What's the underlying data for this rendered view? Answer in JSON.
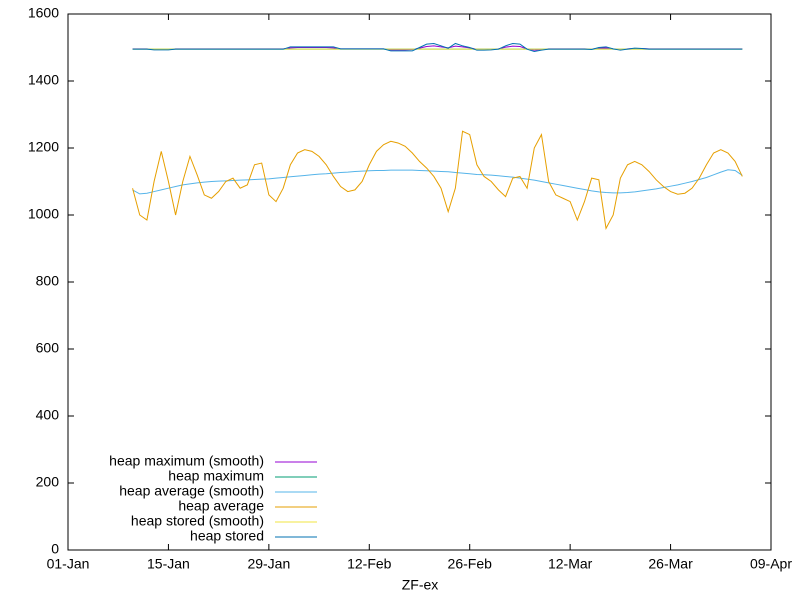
{
  "chart_data": {
    "type": "line",
    "xlabel": "ZF-ex",
    "x": [
      9,
      10,
      11,
      12,
      13,
      14,
      15,
      16,
      17,
      18,
      19,
      20,
      21,
      22,
      23,
      24,
      25,
      26,
      27,
      28,
      29,
      30,
      31,
      32,
      33,
      34,
      35,
      36,
      37,
      38,
      39,
      40,
      41,
      42,
      43,
      44,
      45,
      46,
      47,
      48,
      49,
      50,
      51,
      52,
      53,
      54,
      55,
      56,
      57,
      58,
      59,
      60,
      61,
      62,
      63,
      64,
      65,
      66,
      67,
      68,
      69,
      70,
      71,
      72,
      73,
      74,
      75,
      76,
      77,
      78,
      79,
      80,
      81,
      82,
      83,
      84,
      85,
      86,
      87,
      88,
      89,
      90,
      91,
      92,
      93,
      94
    ],
    "xlim": [
      0,
      98
    ],
    "xticks": [
      {
        "value": 0,
        "label": "01-Jan"
      },
      {
        "value": 14,
        "label": "15-Jan"
      },
      {
        "value": 28,
        "label": "29-Jan"
      },
      {
        "value": 42,
        "label": "12-Feb"
      },
      {
        "value": 56,
        "label": "26-Feb"
      },
      {
        "value": 70,
        "label": "12-Mar"
      },
      {
        "value": 84,
        "label": "26-Mar"
      },
      {
        "value": 98,
        "label": "09-Apr"
      }
    ],
    "ylim": [
      0,
      1600
    ],
    "yticks": [
      0,
      200,
      400,
      600,
      800,
      1000,
      1200,
      1400,
      1600
    ],
    "legend": "bottom left",
    "series": [
      {
        "name": "heap maximum (smooth)",
        "color": "#9400d3",
        "values": [
          1496,
          1496,
          1496,
          1494,
          1494,
          1494,
          1496,
          1496,
          1496,
          1496,
          1496,
          1496,
          1496,
          1496,
          1496,
          1496,
          1496,
          1496,
          1496,
          1496,
          1496,
          1496,
          1499,
          1500,
          1500,
          1500,
          1500,
          1500,
          1499,
          1496,
          1496,
          1496,
          1496,
          1496,
          1496,
          1496,
          1493,
          1493,
          1493,
          1494,
          1498,
          1503,
          1505,
          1502,
          1499,
          1504,
          1502,
          1499,
          1495,
          1495,
          1495,
          1496,
          1501,
          1504,
          1503,
          1496,
          1492,
          1494,
          1496,
          1496,
          1496,
          1496,
          1496,
          1496,
          1495,
          1498,
          1499,
          1496,
          1494,
          1496,
          1497,
          1497,
          1496,
          1496,
          1496,
          1496,
          1496,
          1496,
          1496,
          1496,
          1496,
          1496,
          1496,
          1496,
          1496,
          1496
        ]
      },
      {
        "name": "heap maximum",
        "color": "#009e73",
        "values": [
          1495,
          1495,
          1495,
          1495,
          1495,
          1495,
          1495,
          1495,
          1495,
          1495,
          1495,
          1495,
          1495,
          1495,
          1495,
          1495,
          1495,
          1495,
          1495,
          1495,
          1495,
          1495,
          1495,
          1495,
          1495,
          1495,
          1495,
          1495,
          1495,
          1495,
          1495,
          1495,
          1495,
          1495,
          1495,
          1495,
          1495,
          1495,
          1495,
          1495,
          1495,
          1495,
          1495,
          1495,
          1495,
          1495,
          1495,
          1495,
          1495,
          1495,
          1495,
          1495,
          1495,
          1495,
          1495,
          1495,
          1495,
          1495,
          1495,
          1495,
          1495,
          1495,
          1495,
          1495,
          1495,
          1495,
          1495,
          1495,
          1495,
          1495,
          1495,
          1495,
          1495,
          1495,
          1495,
          1495,
          1495,
          1495,
          1495,
          1495,
          1495,
          1495,
          1495,
          1495,
          1495,
          1495
        ]
      },
      {
        "name": "heap average (smooth)",
        "color": "#56b4e9",
        "values": [
          1075,
          1063,
          1065,
          1070,
          1075,
          1080,
          1085,
          1090,
          1093,
          1096,
          1098,
          1100,
          1101,
          1102,
          1103,
          1104,
          1105,
          1106,
          1107,
          1108,
          1110,
          1112,
          1114,
          1116,
          1118,
          1120,
          1122,
          1123,
          1125,
          1127,
          1128,
          1130,
          1131,
          1132,
          1133,
          1133,
          1134,
          1134,
          1134,
          1134,
          1133,
          1132,
          1131,
          1130,
          1129,
          1127,
          1125,
          1123,
          1121,
          1120,
          1119,
          1117,
          1115,
          1113,
          1110,
          1107,
          1104,
          1100,
          1096,
          1092,
          1088,
          1084,
          1080,
          1076,
          1072,
          1069,
          1067,
          1066,
          1066,
          1067,
          1069,
          1072,
          1075,
          1078,
          1082,
          1086,
          1090,
          1095,
          1100,
          1106,
          1112,
          1120,
          1128,
          1135,
          1133,
          1118
        ]
      },
      {
        "name": "heap average",
        "color": "#e69f00",
        "values": [
          1080,
          1000,
          985,
          1100,
          1190,
          1100,
          1000,
          1100,
          1175,
          1120,
          1060,
          1050,
          1070,
          1100,
          1110,
          1080,
          1090,
          1150,
          1155,
          1060,
          1040,
          1080,
          1150,
          1185,
          1195,
          1190,
          1175,
          1150,
          1115,
          1085,
          1070,
          1075,
          1100,
          1150,
          1190,
          1210,
          1220,
          1215,
          1205,
          1185,
          1160,
          1140,
          1115,
          1080,
          1010,
          1080,
          1250,
          1240,
          1150,
          1115,
          1100,
          1075,
          1055,
          1110,
          1115,
          1080,
          1200,
          1240,
          1100,
          1060,
          1050,
          1040,
          985,
          1040,
          1110,
          1105,
          960,
          1000,
          1110,
          1150,
          1160,
          1150,
          1130,
          1105,
          1085,
          1070,
          1062,
          1065,
          1080,
          1110,
          1150,
          1185,
          1195,
          1185,
          1160,
          1115
        ]
      },
      {
        "name": "heap stored (smooth)",
        "color": "#f0e442",
        "values": [
          1495,
          1495,
          1495,
          1495,
          1495,
          1495,
          1495,
          1495,
          1495,
          1495,
          1495,
          1495,
          1495,
          1495,
          1495,
          1495,
          1495,
          1495,
          1495,
          1495,
          1495,
          1495,
          1495,
          1495,
          1495,
          1495,
          1495,
          1495,
          1495,
          1495,
          1495,
          1495,
          1495,
          1495,
          1495,
          1495,
          1495,
          1495,
          1495,
          1495,
          1495,
          1495,
          1495,
          1495,
          1495,
          1495,
          1495,
          1495,
          1495,
          1495,
          1495,
          1495,
          1495,
          1495,
          1495,
          1495,
          1495,
          1495,
          1495,
          1495,
          1495,
          1495,
          1495,
          1495,
          1495,
          1495,
          1495,
          1495,
          1495,
          1495,
          1495,
          1495,
          1495,
          1495,
          1495,
          1495,
          1495,
          1495,
          1495,
          1495,
          1495,
          1495,
          1495,
          1495,
          1495,
          1495
        ]
      },
      {
        "name": "heap stored",
        "color": "#0072b2",
        "values": [
          1495,
          1495,
          1495,
          1493,
          1493,
          1493,
          1495,
          1495,
          1495,
          1495,
          1495,
          1495,
          1495,
          1495,
          1495,
          1495,
          1495,
          1495,
          1495,
          1495,
          1495,
          1495,
          1502,
          1502,
          1502,
          1502,
          1502,
          1502,
          1502,
          1496,
          1496,
          1496,
          1496,
          1496,
          1496,
          1496,
          1490,
          1490,
          1490,
          1490,
          1500,
          1510,
          1512,
          1505,
          1498,
          1512,
          1505,
          1500,
          1492,
          1492,
          1493,
          1495,
          1505,
          1512,
          1510,
          1495,
          1488,
          1492,
          1495,
          1495,
          1495,
          1495,
          1495,
          1495,
          1494,
          1500,
          1502,
          1496,
          1492,
          1495,
          1498,
          1497,
          1495,
          1495,
          1495,
          1495,
          1495,
          1495,
          1495,
          1495,
          1495,
          1495,
          1495,
          1495,
          1495,
          1495
        ]
      }
    ]
  }
}
